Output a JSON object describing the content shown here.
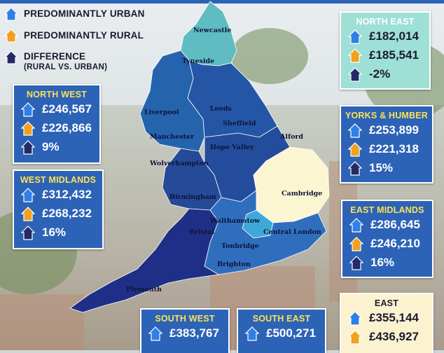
{
  "colors": {
    "urban": "#2e7fe6",
    "rural": "#f0a11e",
    "difference": "#232a66",
    "box_blue": "#2c63b7",
    "box_light": "#9ee0d5",
    "box_cream": "#fbf2cf",
    "title_yellow": "#ffe255"
  },
  "legend": {
    "urban": "PREDOMINANTLY URBAN",
    "rural": "PREDOMINANTLY RURAL",
    "difference": "DIFFERENCE",
    "difference_sub": "(RURAL VS. URBAN)"
  },
  "cities": {
    "newcastle": "Newcastle",
    "tyneside": "Tyneside",
    "liverpool": "Liverpool",
    "leeds": "Leeds",
    "sheffield": "Sheffield",
    "manchester": "Manchester",
    "alford": "Alford",
    "hope_valley": "Hope Valley",
    "wolverhampton": "Wolverhampton",
    "cambridge": "Cambridge",
    "birmingham": "Birmingham",
    "walthamstow": "Walthamstow",
    "central_london": "Central London",
    "bristol": "Bristol",
    "tonbridge": "Tonbridge",
    "brighton": "Brighton",
    "plymouth": "Plymouth"
  },
  "regions": {
    "north_west": {
      "name": "NORTH WEST",
      "urban": "£246,567",
      "rural": "£226,866",
      "diff": "9%"
    },
    "west_midlands": {
      "name": "WEST MIDLANDS",
      "urban": "£312,432",
      "rural": "£268,232",
      "diff": "16%"
    },
    "north_east": {
      "name": "NORTH EAST",
      "urban": "£182,014",
      "rural": "£185,541",
      "diff": "-2%"
    },
    "yorks_humber": {
      "name": "YORKS & HUMBER",
      "urban": "£253,899",
      "rural": "£221,318",
      "diff": "15%"
    },
    "east_midlands": {
      "name": "EAST MIDLANDS",
      "urban": "£286,645",
      "rural": "£246,210",
      "diff": "16%"
    },
    "east": {
      "name": "EAST",
      "urban": "£355,144",
      "rural": "£436,927"
    },
    "south_west": {
      "name": "SOUTH WEST",
      "urban": "£383,767"
    },
    "south_east": {
      "name": "SOUTH EAST",
      "urban": "£500,271"
    }
  }
}
